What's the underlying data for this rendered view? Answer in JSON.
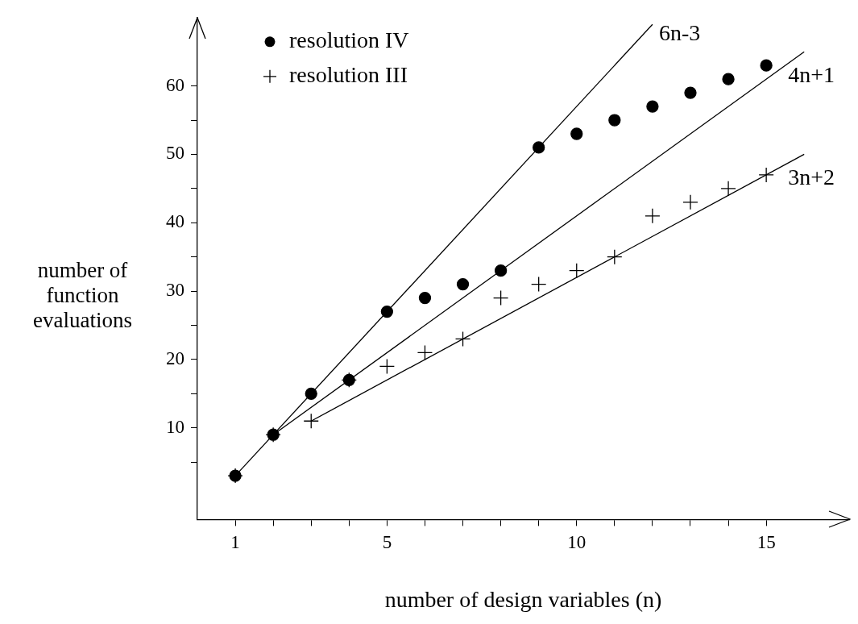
{
  "chart_data": {
    "type": "scatter",
    "xlabel": "number of design variables (n)",
    "ylabel": "number of function evaluations",
    "xlim": [
      0,
      17.2
    ],
    "ylim": [
      -3.4,
      70
    ],
    "xticks": [
      1,
      {
        "value": 2,
        "label": null
      },
      {
        "value": 3,
        "label": null
      },
      {
        "value": 4,
        "label": null
      },
      5,
      {
        "value": 6,
        "label": null
      },
      {
        "value": 7,
        "label": null
      },
      {
        "value": 8,
        "label": null
      },
      {
        "value": 9,
        "label": null
      },
      10,
      {
        "value": 11,
        "label": null
      },
      {
        "value": 12,
        "label": null
      },
      {
        "value": 13,
        "label": null
      },
      {
        "value": 14,
        "label": null
      },
      15
    ],
    "yticks": [
      {
        "value": 5,
        "label": null
      },
      10,
      {
        "value": 15,
        "label": null
      },
      20,
      {
        "value": 25,
        "label": null
      },
      30,
      {
        "value": 35,
        "label": null
      },
      40,
      {
        "value": 45,
        "label": null
      },
      50,
      {
        "value": 55,
        "label": null
      },
      60
    ],
    "grid": false,
    "legend": "top left",
    "series": [
      {
        "name": "resolution IV",
        "marker": "circle",
        "color": "#000000",
        "x": [
          1,
          2,
          3,
          4,
          5,
          6,
          7,
          8,
          9,
          10,
          11,
          12,
          13,
          14,
          15
        ],
        "values": [
          3,
          9,
          15,
          17,
          27,
          29,
          31,
          33,
          51,
          53,
          55,
          57,
          59,
          61,
          63
        ]
      },
      {
        "name": "resolution III",
        "marker": "cross",
        "color": "#000000",
        "x": [
          1,
          2,
          3,
          4,
          5,
          6,
          7,
          8,
          9,
          10,
          11,
          12,
          13,
          14,
          15
        ],
        "values": [
          3,
          9,
          11,
          17,
          19,
          21,
          23,
          29,
          31,
          33,
          35,
          41,
          43,
          45,
          47
        ]
      },
      {
        "name": "6n-3",
        "type": "line",
        "marker": "none",
        "color": "#000000",
        "x": [
          1,
          12
        ],
        "values": [
          3,
          69
        ]
      },
      {
        "name": "4n+1",
        "type": "line",
        "marker": "none",
        "color": "#000000",
        "x": [
          2,
          16
        ],
        "values": [
          9,
          65
        ]
      },
      {
        "name": "3n+2",
        "type": "line",
        "marker": "none",
        "color": "#000000",
        "x": [
          3,
          16
        ],
        "values": [
          11,
          50
        ]
      }
    ]
  }
}
